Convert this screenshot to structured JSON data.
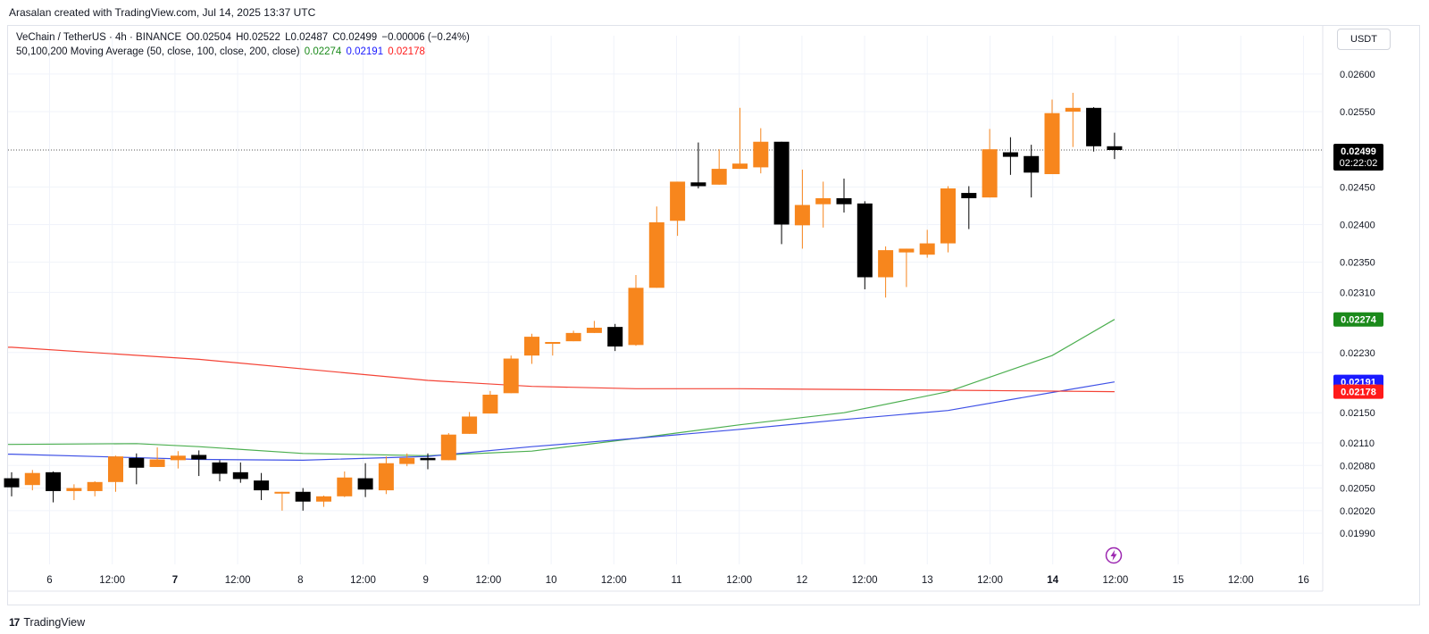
{
  "header": {
    "credit": "Arasalan created with TradingView.com, Jul 14, 2025 13:37 UTC"
  },
  "legend": {
    "line1": "VeChain / TetherUS · 4h · BINANCE",
    "ohlc": [
      "O0.02504",
      "H0.02522",
      "L0.02487",
      "C0.02499",
      "−0.00006 (−0.24%)"
    ],
    "line2": "50,100,200 Moving Average (50, close, 100, close, 200, close)",
    "ma_values": [
      "0.02274",
      "0.02191",
      "0.02178"
    ]
  },
  "currency": "USDT",
  "colors": {
    "up": "#f7861d",
    "down": "#000000",
    "ma50": "#4caf50",
    "ma100": "#3f51e6",
    "ma200": "#f44336",
    "grid": "#f0f3fa",
    "axis_text": "#131722"
  },
  "icons": [
    "tradingview-logo-icon",
    "lightning-icon"
  ],
  "footer": {
    "brand": "TradingView",
    "logo": "17"
  },
  "chart_data": {
    "type": "candlestick",
    "symbol": "VeChain / TetherUS",
    "interval": "4h",
    "exchange": "BINANCE",
    "ylim": [
      0.0197,
      0.0262
    ],
    "y_ticks": [
      "0.02600",
      "0.02550",
      "0.02450",
      "0.02400",
      "0.02350",
      "0.02310",
      "0.02230",
      "0.02150",
      "0.02110",
      "0.02080",
      "0.02050",
      "0.02020",
      "0.01990"
    ],
    "x_ticks": [
      "6",
      "12:00",
      "7",
      "12:00",
      "8",
      "12:00",
      "9",
      "12:00",
      "10",
      "12:00",
      "11",
      "12:00",
      "12",
      "12:00",
      "13",
      "12:00",
      "14",
      "12:00",
      "15",
      "12:00",
      "16"
    ],
    "x_ticks_bold": [
      "7",
      "14"
    ],
    "price_labels": [
      {
        "text": "0.02499",
        "sub": "02:22:02",
        "value": 0.02499,
        "bg": "#000000"
      },
      {
        "text": "0.02274",
        "value": 0.02274,
        "bg": "#1b8a1b"
      },
      {
        "text": "0.02191",
        "value": 0.02191,
        "bg": "#1a1aff"
      },
      {
        "text": "0.02178",
        "value": 0.02178,
        "bg": "#ff1a1a"
      }
    ],
    "last_price": 0.02499,
    "candles": [
      {
        "o": 0.02063,
        "h": 0.02071,
        "l": 0.02039,
        "c": 0.02051
      },
      {
        "o": 0.02054,
        "h": 0.02074,
        "l": 0.02047,
        "c": 0.0207
      },
      {
        "o": 0.02071,
        "h": 0.02072,
        "l": 0.02031,
        "c": 0.02046
      },
      {
        "o": 0.02046,
        "h": 0.02055,
        "l": 0.02034,
        "c": 0.0205
      },
      {
        "o": 0.02046,
        "h": 0.02059,
        "l": 0.02039,
        "c": 0.02058
      },
      {
        "o": 0.02058,
        "h": 0.02093,
        "l": 0.02045,
        "c": 0.02092
      },
      {
        "o": 0.0209,
        "h": 0.02096,
        "l": 0.02055,
        "c": 0.02077
      },
      {
        "o": 0.02078,
        "h": 0.02104,
        "l": 0.02078,
        "c": 0.02088
      },
      {
        "o": 0.02087,
        "h": 0.02099,
        "l": 0.02076,
        "c": 0.02093
      },
      {
        "o": 0.02094,
        "h": 0.021,
        "l": 0.02066,
        "c": 0.02088
      },
      {
        "o": 0.02084,
        "h": 0.02087,
        "l": 0.02059,
        "c": 0.02069
      },
      {
        "o": 0.02071,
        "h": 0.02084,
        "l": 0.02057,
        "c": 0.02062
      },
      {
        "o": 0.0206,
        "h": 0.0207,
        "l": 0.02034,
        "c": 0.02047
      },
      {
        "o": 0.02045,
        "h": 0.02045,
        "l": 0.0202,
        "c": 0.02045
      },
      {
        "o": 0.02045,
        "h": 0.0205,
        "l": 0.0202,
        "c": 0.02032
      },
      {
        "o": 0.02032,
        "h": 0.0204,
        "l": 0.02025,
        "c": 0.02039
      },
      {
        "o": 0.02039,
        "h": 0.02072,
        "l": 0.02038,
        "c": 0.02064
      },
      {
        "o": 0.02063,
        "h": 0.02083,
        "l": 0.02038,
        "c": 0.02048
      },
      {
        "o": 0.02047,
        "h": 0.02092,
        "l": 0.02042,
        "c": 0.02083
      },
      {
        "o": 0.02082,
        "h": 0.02096,
        "l": 0.02079,
        "c": 0.0209
      },
      {
        "o": 0.0209,
        "h": 0.02096,
        "l": 0.02075,
        "c": 0.02087
      },
      {
        "o": 0.02087,
        "h": 0.02123,
        "l": 0.02087,
        "c": 0.02121
      },
      {
        "o": 0.02122,
        "h": 0.02151,
        "l": 0.02122,
        "c": 0.02145
      },
      {
        "o": 0.02149,
        "h": 0.02179,
        "l": 0.02149,
        "c": 0.02174
      },
      {
        "o": 0.02176,
        "h": 0.02226,
        "l": 0.02176,
        "c": 0.02222
      },
      {
        "o": 0.02226,
        "h": 0.02255,
        "l": 0.02215,
        "c": 0.02251
      },
      {
        "o": 0.02244,
        "h": 0.02243,
        "l": 0.02226,
        "c": 0.02244
      },
      {
        "o": 0.02245,
        "h": 0.02259,
        "l": 0.02245,
        "c": 0.02256
      },
      {
        "o": 0.02256,
        "h": 0.02272,
        "l": 0.02256,
        "c": 0.02263
      },
      {
        "o": 0.02264,
        "h": 0.02268,
        "l": 0.02232,
        "c": 0.02238
      },
      {
        "o": 0.0224,
        "h": 0.02333,
        "l": 0.02239,
        "c": 0.02316
      },
      {
        "o": 0.02316,
        "h": 0.02424,
        "l": 0.02316,
        "c": 0.02403
      },
      {
        "o": 0.02405,
        "h": 0.02457,
        "l": 0.02385,
        "c": 0.02457
      },
      {
        "o": 0.02456,
        "h": 0.02509,
        "l": 0.02448,
        "c": 0.02451
      },
      {
        "o": 0.02453,
        "h": 0.025,
        "l": 0.02453,
        "c": 0.02474
      },
      {
        "o": 0.02474,
        "h": 0.02555,
        "l": 0.02474,
        "c": 0.02481
      },
      {
        "o": 0.02476,
        "h": 0.02528,
        "l": 0.02468,
        "c": 0.0251
      },
      {
        "o": 0.0251,
        "h": 0.0251,
        "l": 0.02374,
        "c": 0.024
      },
      {
        "o": 0.02399,
        "h": 0.02473,
        "l": 0.02368,
        "c": 0.02426
      },
      {
        "o": 0.02427,
        "h": 0.02457,
        "l": 0.02396,
        "c": 0.02435
      },
      {
        "o": 0.02435,
        "h": 0.02461,
        "l": 0.02416,
        "c": 0.02427
      },
      {
        "o": 0.02428,
        "h": 0.02431,
        "l": 0.02314,
        "c": 0.0233
      },
      {
        "o": 0.0233,
        "h": 0.02371,
        "l": 0.02303,
        "c": 0.02366
      },
      {
        "o": 0.02363,
        "h": 0.02368,
        "l": 0.02317,
        "c": 0.02368
      },
      {
        "o": 0.0236,
        "h": 0.02393,
        "l": 0.02356,
        "c": 0.02375
      },
      {
        "o": 0.02375,
        "h": 0.02451,
        "l": 0.02363,
        "c": 0.02448
      },
      {
        "o": 0.02442,
        "h": 0.02451,
        "l": 0.02394,
        "c": 0.02435
      },
      {
        "o": 0.02436,
        "h": 0.02527,
        "l": 0.02436,
        "c": 0.025
      },
      {
        "o": 0.02496,
        "h": 0.02516,
        "l": 0.02466,
        "c": 0.0249
      },
      {
        "o": 0.02491,
        "h": 0.02506,
        "l": 0.02436,
        "c": 0.02469
      },
      {
        "o": 0.02467,
        "h": 0.02566,
        "l": 0.02467,
        "c": 0.02548
      },
      {
        "o": 0.0255,
        "h": 0.02575,
        "l": 0.02503,
        "c": 0.02555
      },
      {
        "o": 0.02555,
        "h": 0.02556,
        "l": 0.02497,
        "c": 0.02504
      },
      {
        "o": 0.02504,
        "h": 0.02522,
        "l": 0.02487,
        "c": 0.02499
      }
    ],
    "series": [
      {
        "name": "MA 50",
        "color": "#4caf50",
        "points": [
          [
            0,
            0.02108
          ],
          [
            6,
            0.02109
          ],
          [
            9,
            0.02105
          ],
          [
            14,
            0.02096
          ],
          [
            20,
            0.02093
          ],
          [
            25,
            0.02099
          ],
          [
            30,
            0.02116
          ],
          [
            35,
            0.02134
          ],
          [
            40,
            0.0215
          ],
          [
            45,
            0.02178
          ],
          [
            50,
            0.02226
          ],
          [
            53,
            0.02274
          ]
        ]
      },
      {
        "name": "MA 100",
        "color": "#3f51e6",
        "points": [
          [
            0,
            0.02095
          ],
          [
            9,
            0.02088
          ],
          [
            14,
            0.02087
          ],
          [
            20,
            0.02092
          ],
          [
            25,
            0.02105
          ],
          [
            30,
            0.02116
          ],
          [
            35,
            0.02128
          ],
          [
            40,
            0.02141
          ],
          [
            45,
            0.02153
          ],
          [
            50,
            0.02177
          ],
          [
            53,
            0.02191
          ]
        ]
      },
      {
        "name": "MA 200",
        "color": "#f44336",
        "points": [
          [
            0,
            0.02237
          ],
          [
            9,
            0.02221
          ],
          [
            20,
            0.02193
          ],
          [
            25,
            0.02185
          ],
          [
            30,
            0.02182
          ],
          [
            35,
            0.02182
          ],
          [
            40,
            0.02181
          ],
          [
            45,
            0.0218
          ],
          [
            53,
            0.02178
          ]
        ]
      }
    ]
  }
}
